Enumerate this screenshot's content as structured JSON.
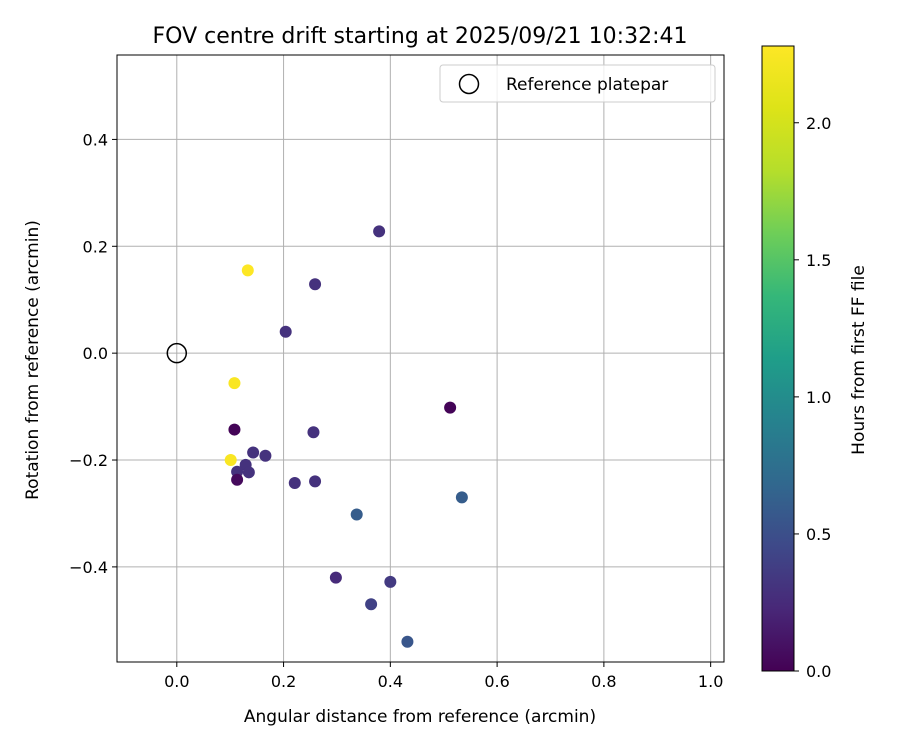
{
  "chart_data": {
    "type": "scatter",
    "title": "FOV centre drift starting at 2025/09/21 10:32:41",
    "xlabel": "Angular distance from reference (arcmin)",
    "ylabel": "Rotation from reference (arcmin)",
    "xlim": [
      -0.112,
      1.025
    ],
    "ylim": [
      -0.578,
      0.558
    ],
    "xticks": [
      0.0,
      0.2,
      0.4,
      0.6,
      0.8,
      1.0
    ],
    "xtick_labels": [
      "0.0",
      "0.2",
      "0.4",
      "0.6",
      "0.8",
      "1.0"
    ],
    "yticks": [
      -0.4,
      -0.2,
      0.0,
      0.2,
      0.4
    ],
    "ytick_labels": [
      "−0.4",
      "−0.2",
      "0.0",
      "0.2",
      "0.4"
    ],
    "grid": true,
    "legend": {
      "position": "upper-right",
      "label": "Reference platepar"
    },
    "reference_point": {
      "x": 0.0,
      "y": 0.0
    },
    "colorbar": {
      "label": "Hours from first FF file",
      "range": [
        0.0,
        2.28
      ],
      "ticks": [
        0.0,
        0.5,
        1.0,
        1.5,
        2.0
      ],
      "tick_labels": [
        "0.0",
        "0.5",
        "1.0",
        "1.5",
        "2.0"
      ],
      "colormap": "viridis"
    },
    "points": [
      {
        "x": 0.379,
        "y": 0.228,
        "hours": 0.3
      },
      {
        "x": 0.259,
        "y": 0.129,
        "hours": 0.3
      },
      {
        "x": 0.204,
        "y": 0.04,
        "hours": 0.3
      },
      {
        "x": 0.133,
        "y": 0.155,
        "hours": 2.28
      },
      {
        "x": 0.108,
        "y": -0.056,
        "hours": 2.25
      },
      {
        "x": 0.512,
        "y": -0.102,
        "hours": 0.02
      },
      {
        "x": 0.108,
        "y": -0.143,
        "hours": 0.02
      },
      {
        "x": 0.256,
        "y": -0.148,
        "hours": 0.3
      },
      {
        "x": 0.143,
        "y": -0.186,
        "hours": 0.3
      },
      {
        "x": 0.166,
        "y": -0.192,
        "hours": 0.3
      },
      {
        "x": 0.101,
        "y": -0.2,
        "hours": 2.25
      },
      {
        "x": 0.129,
        "y": -0.209,
        "hours": 0.3
      },
      {
        "x": 0.113,
        "y": -0.222,
        "hours": 0.3
      },
      {
        "x": 0.135,
        "y": -0.223,
        "hours": 0.3
      },
      {
        "x": 0.113,
        "y": -0.237,
        "hours": 0.05
      },
      {
        "x": 0.221,
        "y": -0.243,
        "hours": 0.3
      },
      {
        "x": 0.259,
        "y": -0.24,
        "hours": 0.3
      },
      {
        "x": 0.534,
        "y": -0.27,
        "hours": 0.6
      },
      {
        "x": 0.337,
        "y": -0.302,
        "hours": 0.6
      },
      {
        "x": 0.298,
        "y": -0.42,
        "hours": 0.25
      },
      {
        "x": 0.4,
        "y": -0.428,
        "hours": 0.35
      },
      {
        "x": 0.364,
        "y": -0.47,
        "hours": 0.4
      },
      {
        "x": 0.432,
        "y": -0.54,
        "hours": 0.55
      }
    ]
  }
}
